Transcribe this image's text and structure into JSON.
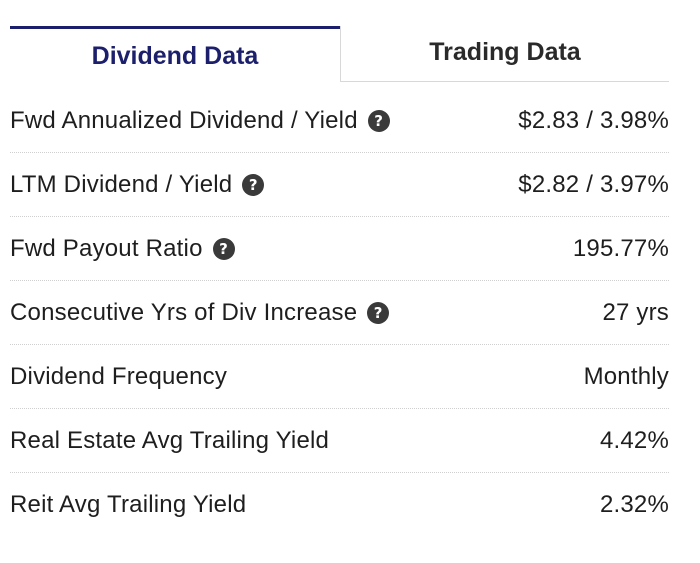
{
  "tabs": [
    {
      "label": "Dividend Data",
      "active": true
    },
    {
      "label": "Trading Data",
      "active": false
    }
  ],
  "help_glyph": "?",
  "colors": {
    "active_tab": "#1c1f6b",
    "help_icon": "#3a3a3a"
  },
  "rows": [
    {
      "label": "Fwd Annualized Dividend / Yield",
      "value": "$2.83 / 3.98%",
      "help": true
    },
    {
      "label": "LTM Dividend / Yield",
      "value": "$2.82 / 3.97%",
      "help": true
    },
    {
      "label": "Fwd Payout Ratio",
      "value": "195.77%",
      "help": true
    },
    {
      "label": "Consecutive Yrs of Div Increase",
      "value": "27 yrs",
      "help": true
    },
    {
      "label": "Dividend Frequency",
      "value": "Monthly",
      "help": false
    },
    {
      "label": "Real Estate Avg Trailing Yield",
      "value": "4.42%",
      "help": false
    },
    {
      "label": "Reit Avg Trailing Yield",
      "value": "2.32%",
      "help": false
    }
  ]
}
